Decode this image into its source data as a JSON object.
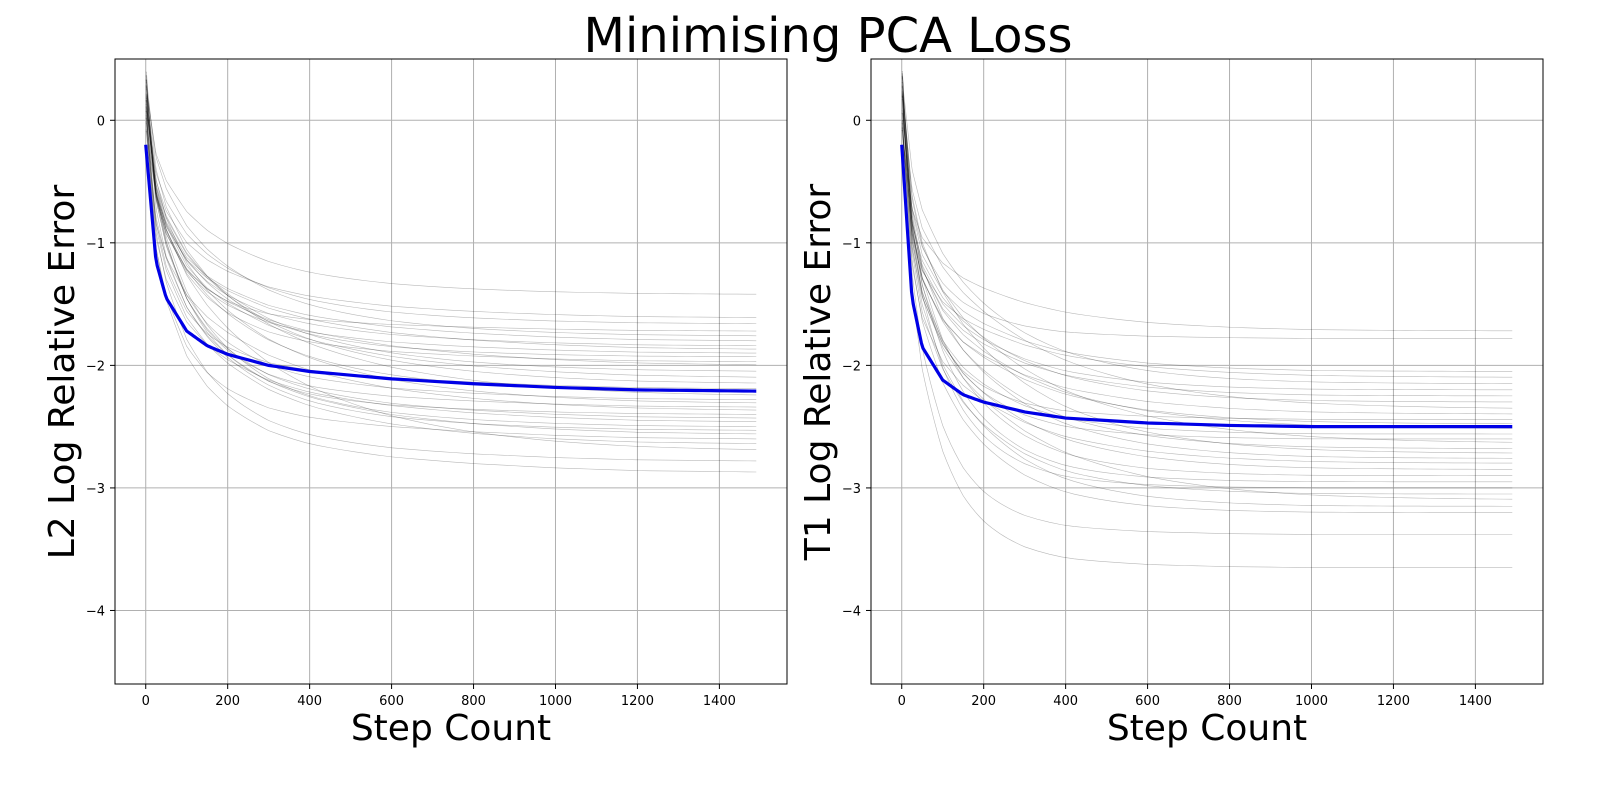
{
  "chart_data": {
    "title": "Minimising PCA Loss",
    "mean_color": "#0000e6",
    "run_color": "#000000",
    "panels": [
      {
        "type": "line",
        "xlabel": "Step Count",
        "ylabel": "L2 Log Relative Error",
        "xlim": [
          -75,
          1565
        ],
        "ylim": [
          -4.6,
          0.5
        ],
        "xticks": [
          0,
          200,
          400,
          600,
          800,
          1000,
          1200,
          1400
        ],
        "yticks": [
          0,
          -1,
          -2,
          -3,
          -4
        ],
        "grid": true,
        "x_end": 1490,
        "start": -0.2,
        "mean_series": {
          "x": [
            0,
            25,
            50,
            100,
            150,
            200,
            300,
            400,
            600,
            800,
            1000,
            1200,
            1490
          ],
          "y": [
            -0.2,
            -1.15,
            -1.45,
            -1.72,
            -1.84,
            -1.91,
            -2.0,
            -2.05,
            -2.11,
            -2.15,
            -2.18,
            -2.2,
            -2.21
          ]
        },
        "run_finals": [
          -1.42,
          -1.61,
          -1.66,
          -1.72,
          -1.76,
          -1.8,
          -1.84,
          -1.87,
          -1.9,
          -1.93,
          -1.97,
          -2.0,
          -2.05,
          -2.1,
          -2.15,
          -2.19,
          -2.22,
          -2.25,
          -2.28,
          -2.31,
          -2.34,
          -2.37,
          -2.4,
          -2.43,
          -2.46,
          -2.5,
          -2.53,
          -2.56,
          -2.6,
          -2.64,
          -2.7,
          -2.78,
          -2.87
        ]
      },
      {
        "type": "line",
        "xlabel": "Step Count",
        "ylabel": "T1 Log Relative Error",
        "xlim": [
          -75,
          1565
        ],
        "ylim": [
          -4.6,
          0.5
        ],
        "xticks": [
          0,
          200,
          400,
          600,
          800,
          1000,
          1200,
          1400
        ],
        "yticks": [
          0,
          -1,
          -2,
          -3,
          -4
        ],
        "grid": true,
        "x_end": 1490,
        "start": -0.2,
        "mean_series": {
          "x": [
            0,
            25,
            50,
            100,
            150,
            200,
            300,
            400,
            600,
            800,
            1000,
            1200,
            1490
          ],
          "y": [
            -0.2,
            -1.45,
            -1.85,
            -2.12,
            -2.24,
            -2.3,
            -2.38,
            -2.43,
            -2.47,
            -2.49,
            -2.5,
            -2.5,
            -2.5
          ]
        },
        "run_finals": [
          -1.72,
          -1.78,
          -2.05,
          -2.1,
          -2.15,
          -2.2,
          -2.25,
          -2.3,
          -2.36,
          -2.4,
          -2.44,
          -2.48,
          -2.52,
          -2.56,
          -2.6,
          -2.64,
          -2.68,
          -2.72,
          -2.76,
          -2.8,
          -2.85,
          -2.9,
          -2.95,
          -3.0,
          -3.05,
          -3.1,
          -3.15,
          -3.2,
          -3.38,
          -3.65
        ]
      }
    ]
  }
}
